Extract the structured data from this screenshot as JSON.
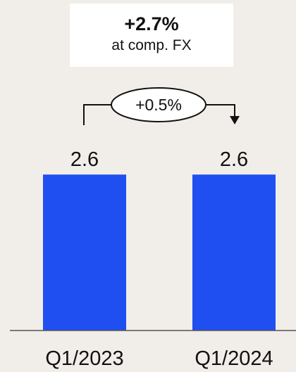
{
  "callout": {
    "main": "+2.7%",
    "sub": "at comp. FX"
  },
  "change_badge": "+0.5%",
  "colors": {
    "background": "#f1ede9",
    "bar": "#1f4ff0",
    "callout_bg": "#ffffff"
  },
  "chart_data": {
    "type": "bar",
    "categories": [
      "Q1/2023",
      "Q1/2024"
    ],
    "values": [
      2.6,
      2.6
    ],
    "data_labels": [
      "2.6",
      "2.6"
    ],
    "title": "",
    "xlabel": "",
    "ylabel": "",
    "ylim": [
      0,
      3.4
    ],
    "grid": false,
    "legend": "none"
  }
}
